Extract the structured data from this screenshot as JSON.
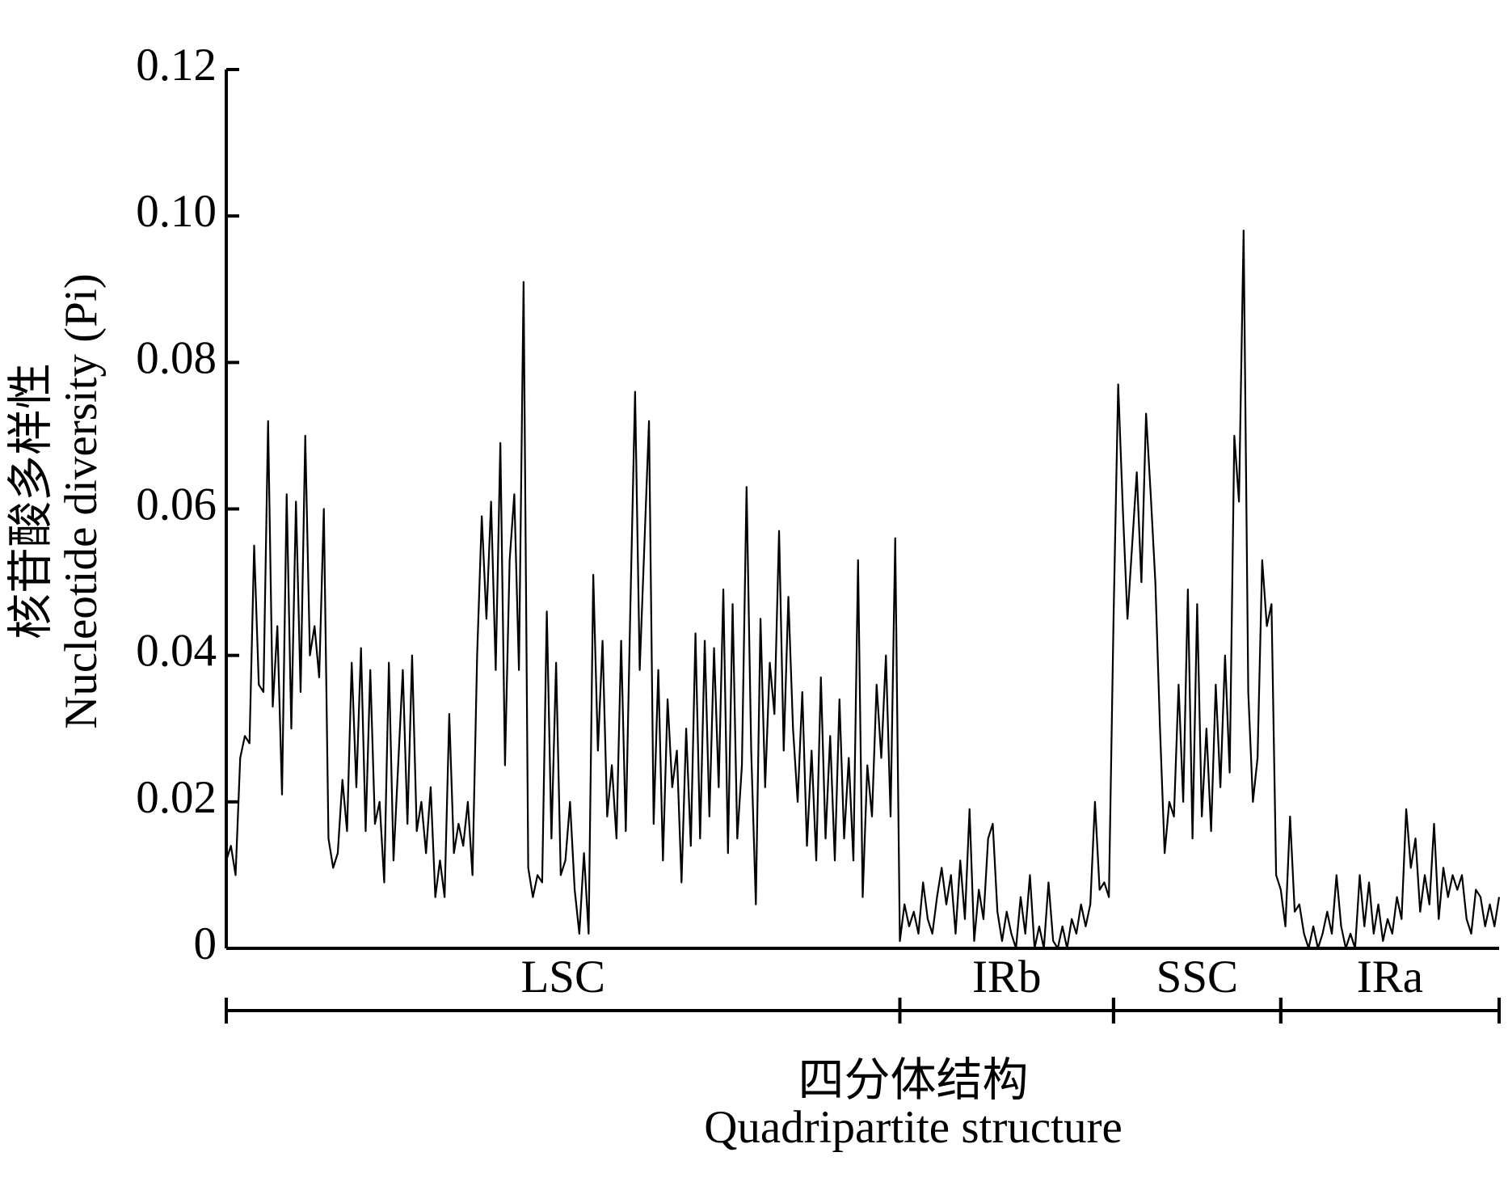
{
  "chart_data": {
    "type": "line",
    "y_title": [
      "核苷酸多样性",
      "Nucleotide diversity (Pi)"
    ],
    "x_title": [
      "四分体结构",
      "Quadripartite structure"
    ],
    "color": "#000000",
    "xlim": [
      0,
      274
    ],
    "ylim": [
      0,
      0.12
    ],
    "yticks": [
      0,
      0.02,
      0.04,
      0.06,
      0.08,
      {
        "value": 0.1,
        "label": "0.10"
      },
      0.12
    ],
    "regions": [
      {
        "label": "LSC",
        "start": 0,
        "end": 145
      },
      {
        "label": "IRb",
        "start": 145,
        "end": 191
      },
      {
        "label": "SSC",
        "start": 191,
        "end": 227
      },
      {
        "label": "IRa",
        "start": 227,
        "end": 274
      }
    ],
    "values": [
      0.012,
      0.014,
      0.01,
      0.026,
      0.029,
      0.028,
      0.055,
      0.036,
      0.035,
      0.072,
      0.033,
      0.044,
      0.021,
      0.062,
      0.03,
      0.061,
      0.035,
      0.07,
      0.04,
      0.044,
      0.037,
      0.06,
      0.015,
      0.011,
      0.013,
      0.023,
      0.016,
      0.039,
      0.022,
      0.041,
      0.016,
      0.038,
      0.017,
      0.02,
      0.009,
      0.039,
      0.012,
      0.025,
      0.038,
      0.017,
      0.04,
      0.016,
      0.02,
      0.013,
      0.022,
      0.007,
      0.012,
      0.007,
      0.032,
      0.013,
      0.017,
      0.014,
      0.02,
      0.01,
      0.04,
      0.059,
      0.045,
      0.061,
      0.038,
      0.069,
      0.025,
      0.053,
      0.062,
      0.038,
      0.091,
      0.011,
      0.007,
      0.01,
      0.009,
      0.046,
      0.015,
      0.039,
      0.01,
      0.012,
      0.02,
      0.008,
      0.002,
      0.013,
      0.002,
      0.051,
      0.027,
      0.042,
      0.018,
      0.025,
      0.015,
      0.042,
      0.016,
      0.047,
      0.076,
      0.038,
      0.055,
      0.072,
      0.017,
      0.038,
      0.012,
      0.034,
      0.022,
      0.027,
      0.009,
      0.03,
      0.014,
      0.043,
      0.015,
      0.042,
      0.018,
      0.041,
      0.022,
      0.049,
      0.013,
      0.047,
      0.015,
      0.025,
      0.063,
      0.027,
      0.006,
      0.045,
      0.022,
      0.039,
      0.032,
      0.057,
      0.027,
      0.048,
      0.03,
      0.02,
      0.035,
      0.014,
      0.027,
      0.012,
      0.037,
      0.015,
      0.029,
      0.012,
      0.034,
      0.015,
      0.026,
      0.012,
      0.053,
      0.007,
      0.025,
      0.018,
      0.036,
      0.026,
      0.04,
      0.018,
      0.056,
      0.001,
      0.006,
      0.003,
      0.005,
      0.002,
      0.009,
      0.004,
      0.002,
      0.007,
      0.011,
      0.006,
      0.01,
      0.002,
      0.012,
      0.004,
      0.019,
      0.001,
      0.008,
      0.004,
      0.015,
      0.017,
      0.005,
      0.001,
      0.005,
      0.002,
      0,
      0.007,
      0.002,
      0.01,
      0,
      0.003,
      0,
      0.009,
      0.001,
      0,
      0.003,
      0,
      0.004,
      0.002,
      0.006,
      0.003,
      0.006,
      0.02,
      0.008,
      0.009,
      0.007,
      0.045,
      0.077,
      0.06,
      0.045,
      0.055,
      0.065,
      0.05,
      0.073,
      0.062,
      0.05,
      0.03,
      0.013,
      0.02,
      0.018,
      0.036,
      0.02,
      0.049,
      0.015,
      0.047,
      0.018,
      0.03,
      0.016,
      0.036,
      0.022,
      0.04,
      0.024,
      0.07,
      0.061,
      0.098,
      0.035,
      0.02,
      0.026,
      0.053,
      0.044,
      0.047,
      0.01,
      0.008,
      0.003,
      0.018,
      0.005,
      0.006,
      0.002,
      0,
      0.003,
      0,
      0.002,
      0.005,
      0.002,
      0.01,
      0.003,
      0,
      0.002,
      0,
      0.01,
      0.003,
      0.009,
      0.002,
      0.006,
      0.001,
      0.004,
      0.002,
      0.007,
      0.004,
      0.019,
      0.011,
      0.015,
      0.005,
      0.01,
      0.006,
      0.017,
      0.004,
      0.011,
      0.007,
      0.01,
      0.008,
      0.01,
      0.004,
      0.002,
      0.008,
      0.007,
      0.003,
      0.006,
      0.003,
      0.007
    ]
  }
}
